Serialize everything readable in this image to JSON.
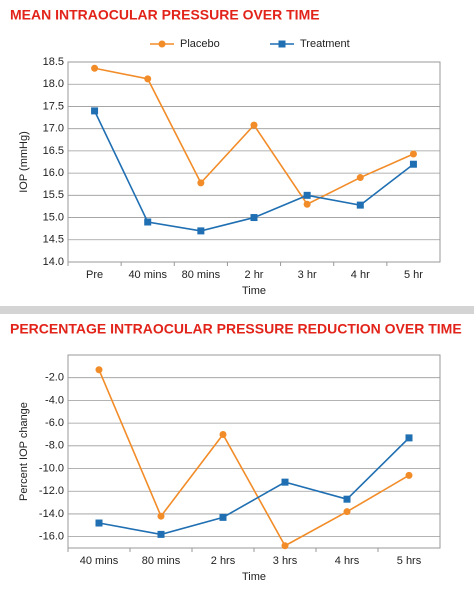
{
  "chart_data": [
    {
      "type": "line",
      "title": "MEAN INTRAOCULAR PRESSURE OVER TIME",
      "x_label": "Time",
      "y_label": "IOP (mmHg)",
      "categories": [
        "Pre",
        "40 mins",
        "80 mins",
        "2 hr",
        "3 hr",
        "4 hr",
        "5 hr"
      ],
      "series": [
        {
          "name": "Placebo",
          "color": "#f28c28",
          "marker": "circle",
          "values": [
            18.36,
            18.12,
            15.78,
            17.08,
            15.3,
            15.9,
            16.43
          ]
        },
        {
          "name": "Treatment",
          "color": "#1f6fb2",
          "marker": "square",
          "values": [
            17.4,
            14.9,
            14.7,
            15.0,
            15.5,
            15.28,
            16.2
          ]
        }
      ],
      "ylim": [
        14.0,
        18.5
      ],
      "yticks": [
        {
          "value": 14,
          "label": "14.0"
        },
        14.5,
        {
          "value": 15,
          "label": "15.0"
        },
        15.5,
        {
          "value": 16,
          "label": "16.0"
        },
        16.5,
        {
          "value": 17,
          "label": "17.0"
        },
        17.5,
        {
          "value": 18,
          "label": "18.0"
        },
        18.5
      ],
      "grid": true,
      "legend": "top"
    },
    {
      "type": "line",
      "title": "PERCENTAGE INTRAOCULAR PRESSURE REDUCTION OVER TIME",
      "x_label": "Time",
      "y_label": "Percent IOP change",
      "categories": [
        "40 mins",
        "80 mins",
        "2 hrs",
        "3 hrs",
        "4 hrs",
        "5 hrs"
      ],
      "series": [
        {
          "color": "#f28c28",
          "marker": "circle",
          "values": [
            -1.3,
            -14.2,
            -7.0,
            -16.8,
            -13.8,
            -10.6
          ]
        },
        {
          "color": "#1f6fb2",
          "marker": "square",
          "values": [
            -14.8,
            -15.8,
            -14.3,
            -11.2,
            -12.7,
            -7.3
          ]
        }
      ],
      "ylim": [
        -17,
        0
      ],
      "yticks": [
        {
          "value": -2,
          "label": "-2.0"
        },
        {
          "value": -4,
          "label": "-4.0"
        },
        {
          "value": -6,
          "label": "-6.0"
        },
        {
          "value": -8,
          "label": "-8.0"
        },
        {
          "value": -10,
          "label": "-10.0"
        },
        {
          "value": -12,
          "label": "-12.0"
        },
        {
          "value": -14,
          "label": "-14.0"
        },
        {
          "value": -16,
          "label": "-16.0"
        }
      ],
      "grid": true
    }
  ]
}
